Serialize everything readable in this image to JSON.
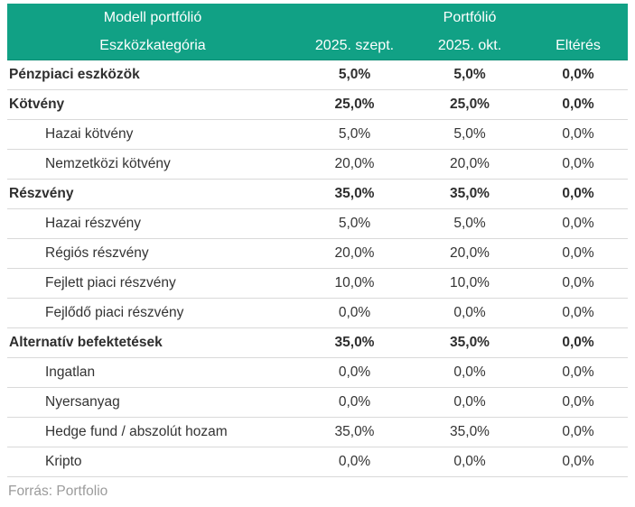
{
  "chart_data": {
    "type": "table",
    "title": "Modell portfólió / Portfólió eszközallokáció",
    "group_headers": [
      "Modell portfólió",
      "Portfólió"
    ],
    "columns": [
      "Eszközkategória",
      "2025. szept.",
      "2025. okt.",
      "Eltérés"
    ],
    "unit": "percent (comma decimal separator)",
    "rows": [
      {
        "category": "Pénzpiaci eszközök",
        "level": "group",
        "szept": 5.0,
        "okt": 5.0,
        "elteres": 0.0
      },
      {
        "category": "Kötvény",
        "level": "group",
        "szept": 25.0,
        "okt": 25.0,
        "elteres": 0.0
      },
      {
        "category": "Hazai kötvény",
        "level": "sub",
        "szept": 5.0,
        "okt": 5.0,
        "elteres": 0.0
      },
      {
        "category": "Nemzetközi kötvény",
        "level": "sub",
        "szept": 20.0,
        "okt": 20.0,
        "elteres": 0.0
      },
      {
        "category": "Részvény",
        "level": "group",
        "szept": 35.0,
        "okt": 35.0,
        "elteres": 0.0
      },
      {
        "category": "Hazai részvény",
        "level": "sub",
        "szept": 5.0,
        "okt": 5.0,
        "elteres": 0.0
      },
      {
        "category": "Régiós részvény",
        "level": "sub",
        "szept": 20.0,
        "okt": 20.0,
        "elteres": 0.0
      },
      {
        "category": "Fejlett piaci részvény",
        "level": "sub",
        "szept": 10.0,
        "okt": 10.0,
        "elteres": 0.0
      },
      {
        "category": "Fejlődő piaci részvény",
        "level": "sub",
        "szept": 0.0,
        "okt": 0.0,
        "elteres": 0.0
      },
      {
        "category": "Alternatív befektetések",
        "level": "group",
        "szept": 35.0,
        "okt": 35.0,
        "elteres": 0.0
      },
      {
        "category": "Ingatlan",
        "level": "sub",
        "szept": 0.0,
        "okt": 0.0,
        "elteres": 0.0
      },
      {
        "category": "Nyersanyag",
        "level": "sub",
        "szept": 0.0,
        "okt": 0.0,
        "elteres": 0.0
      },
      {
        "category": "Hedge fund / abszolút hozam",
        "level": "sub",
        "szept": 35.0,
        "okt": 35.0,
        "elteres": 0.0
      },
      {
        "category": "Kripto",
        "level": "sub",
        "szept": 0.0,
        "okt": 0.0,
        "elteres": 0.0
      }
    ],
    "source": "Forrás: Portfolio"
  },
  "header": {
    "group_left": "Modell portfólió",
    "group_right": "Portfólió",
    "col_category": "Eszközkategória",
    "col_szept": "2025. szept.",
    "col_okt": "2025. okt.",
    "col_elteres": "Eltérés"
  },
  "rows": [
    {
      "label": "Pénzpiaci eszközök",
      "bold": true,
      "indent": false,
      "values": [
        "5,0%",
        "5,0%",
        "0,0%"
      ]
    },
    {
      "label": "Kötvény",
      "bold": true,
      "indent": false,
      "values": [
        "25,0%",
        "25,0%",
        "0,0%"
      ]
    },
    {
      "label": "Hazai kötvény",
      "bold": false,
      "indent": true,
      "values": [
        "5,0%",
        "5,0%",
        "0,0%"
      ]
    },
    {
      "label": "Nemzetközi kötvény",
      "bold": false,
      "indent": true,
      "values": [
        "20,0%",
        "20,0%",
        "0,0%"
      ]
    },
    {
      "label": "Részvény",
      "bold": true,
      "indent": false,
      "values": [
        "35,0%",
        "35,0%",
        "0,0%"
      ]
    },
    {
      "label": "Hazai részvény",
      "bold": false,
      "indent": true,
      "values": [
        "5,0%",
        "5,0%",
        "0,0%"
      ]
    },
    {
      "label": "Régiós részvény",
      "bold": false,
      "indent": true,
      "values": [
        "20,0%",
        "20,0%",
        "0,0%"
      ]
    },
    {
      "label": "Fejlett piaci részvény",
      "bold": false,
      "indent": true,
      "values": [
        "10,0%",
        "10,0%",
        "0,0%"
      ]
    },
    {
      "label": "Fejlődő piaci részvény",
      "bold": false,
      "indent": true,
      "values": [
        "0,0%",
        "0,0%",
        "0,0%"
      ]
    },
    {
      "label": "Alternatív befektetések",
      "bold": true,
      "indent": false,
      "values": [
        "35,0%",
        "35,0%",
        "0,0%"
      ]
    },
    {
      "label": "Ingatlan",
      "bold": false,
      "indent": true,
      "values": [
        "0,0%",
        "0,0%",
        "0,0%"
      ]
    },
    {
      "label": "Nyersanyag",
      "bold": false,
      "indent": true,
      "values": [
        "0,0%",
        "0,0%",
        "0,0%"
      ]
    },
    {
      "label": "Hedge fund / abszolút hozam",
      "bold": false,
      "indent": true,
      "values": [
        "35,0%",
        "35,0%",
        "0,0%"
      ]
    },
    {
      "label": "Kripto",
      "bold": false,
      "indent": true,
      "values": [
        "0,0%",
        "0,0%",
        "0,0%"
      ]
    }
  ],
  "footer": {
    "source": "Forrás: Portfolio"
  },
  "colors": {
    "header_bg": "#11A185",
    "header_text": "#FFFFFF",
    "row_divider": "#D9D9D9",
    "body_text": "#333333",
    "source_text": "#9B9B9B"
  }
}
